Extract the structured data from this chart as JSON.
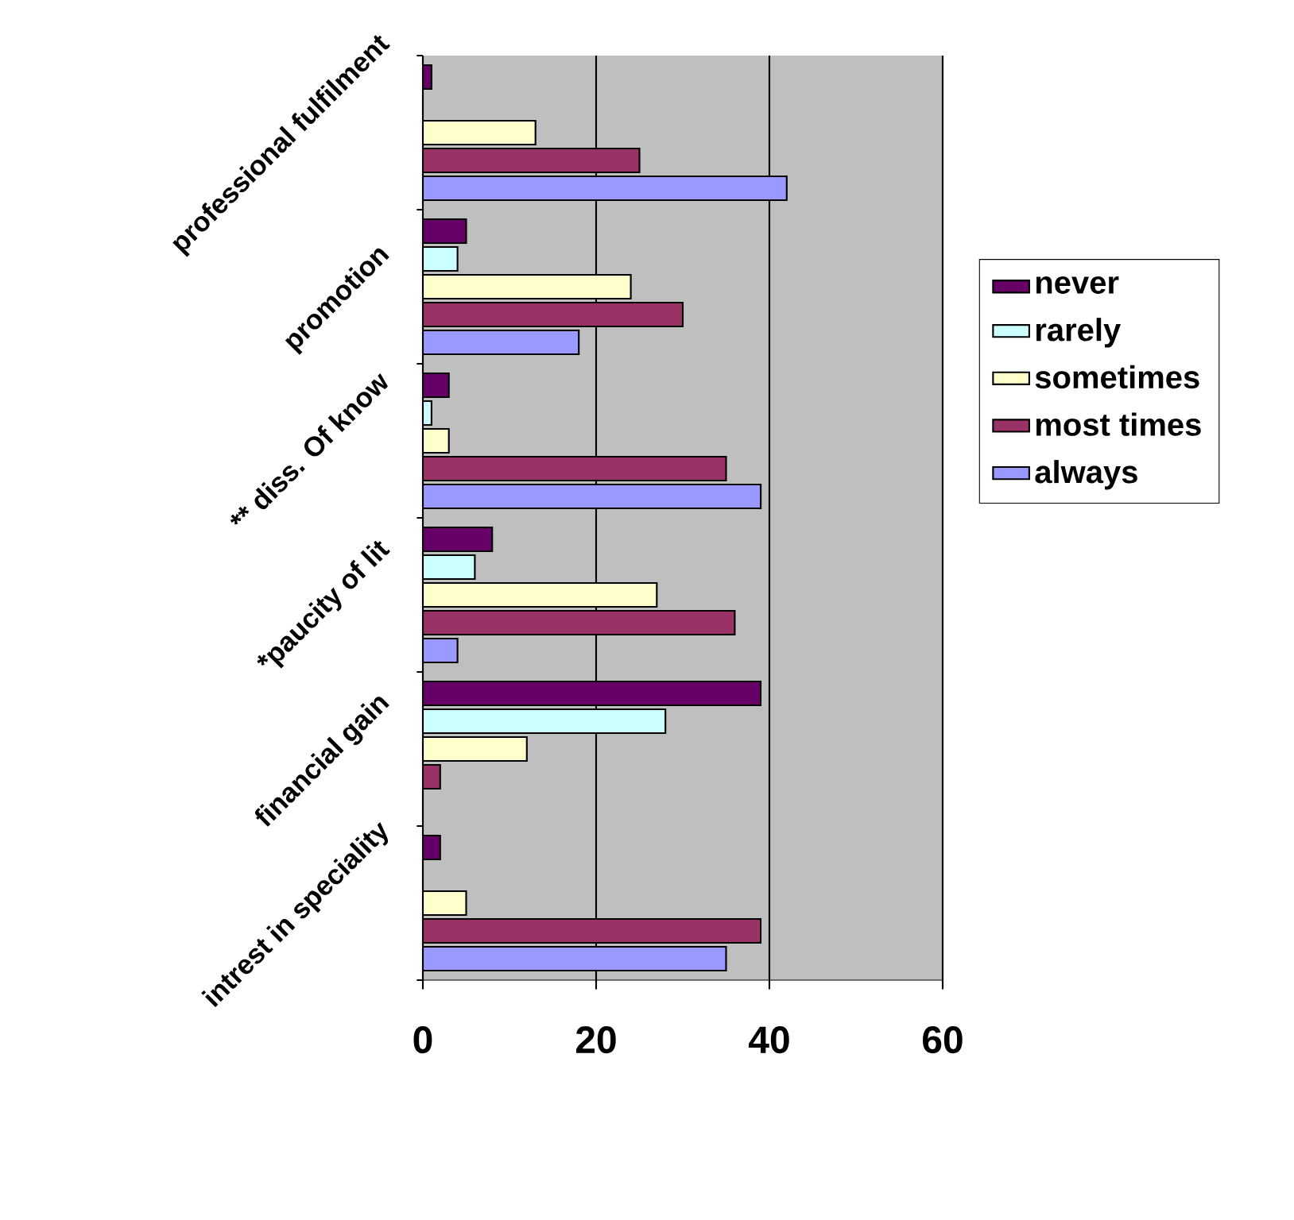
{
  "chart_data": {
    "type": "bar",
    "orientation": "horizontal",
    "categories": [
      "professional fulfilment",
      "promotion",
      "** diss. Of know",
      "*paucity of lit",
      "financial gain",
      "intrest in speciality"
    ],
    "series": [
      {
        "name": "never",
        "color": "#660066",
        "values": [
          1,
          5,
          3,
          8,
          39,
          2
        ]
      },
      {
        "name": "rarely",
        "color": "#ccffff",
        "values": [
          null,
          4,
          1,
          6,
          28,
          null
        ]
      },
      {
        "name": "sometimes",
        "color": "#ffffcc",
        "values": [
          13,
          24,
          3,
          27,
          12,
          5
        ]
      },
      {
        "name": "most times",
        "color": "#993366",
        "values": [
          25,
          30,
          35,
          36,
          2,
          39
        ]
      },
      {
        "name": "always",
        "color": "#9999ff",
        "values": [
          42,
          18,
          39,
          4,
          null,
          35
        ]
      }
    ],
    "xlim": [
      0,
      60
    ],
    "xticks": [
      0,
      20,
      40,
      60
    ],
    "grid": "x",
    "legend": "right"
  }
}
